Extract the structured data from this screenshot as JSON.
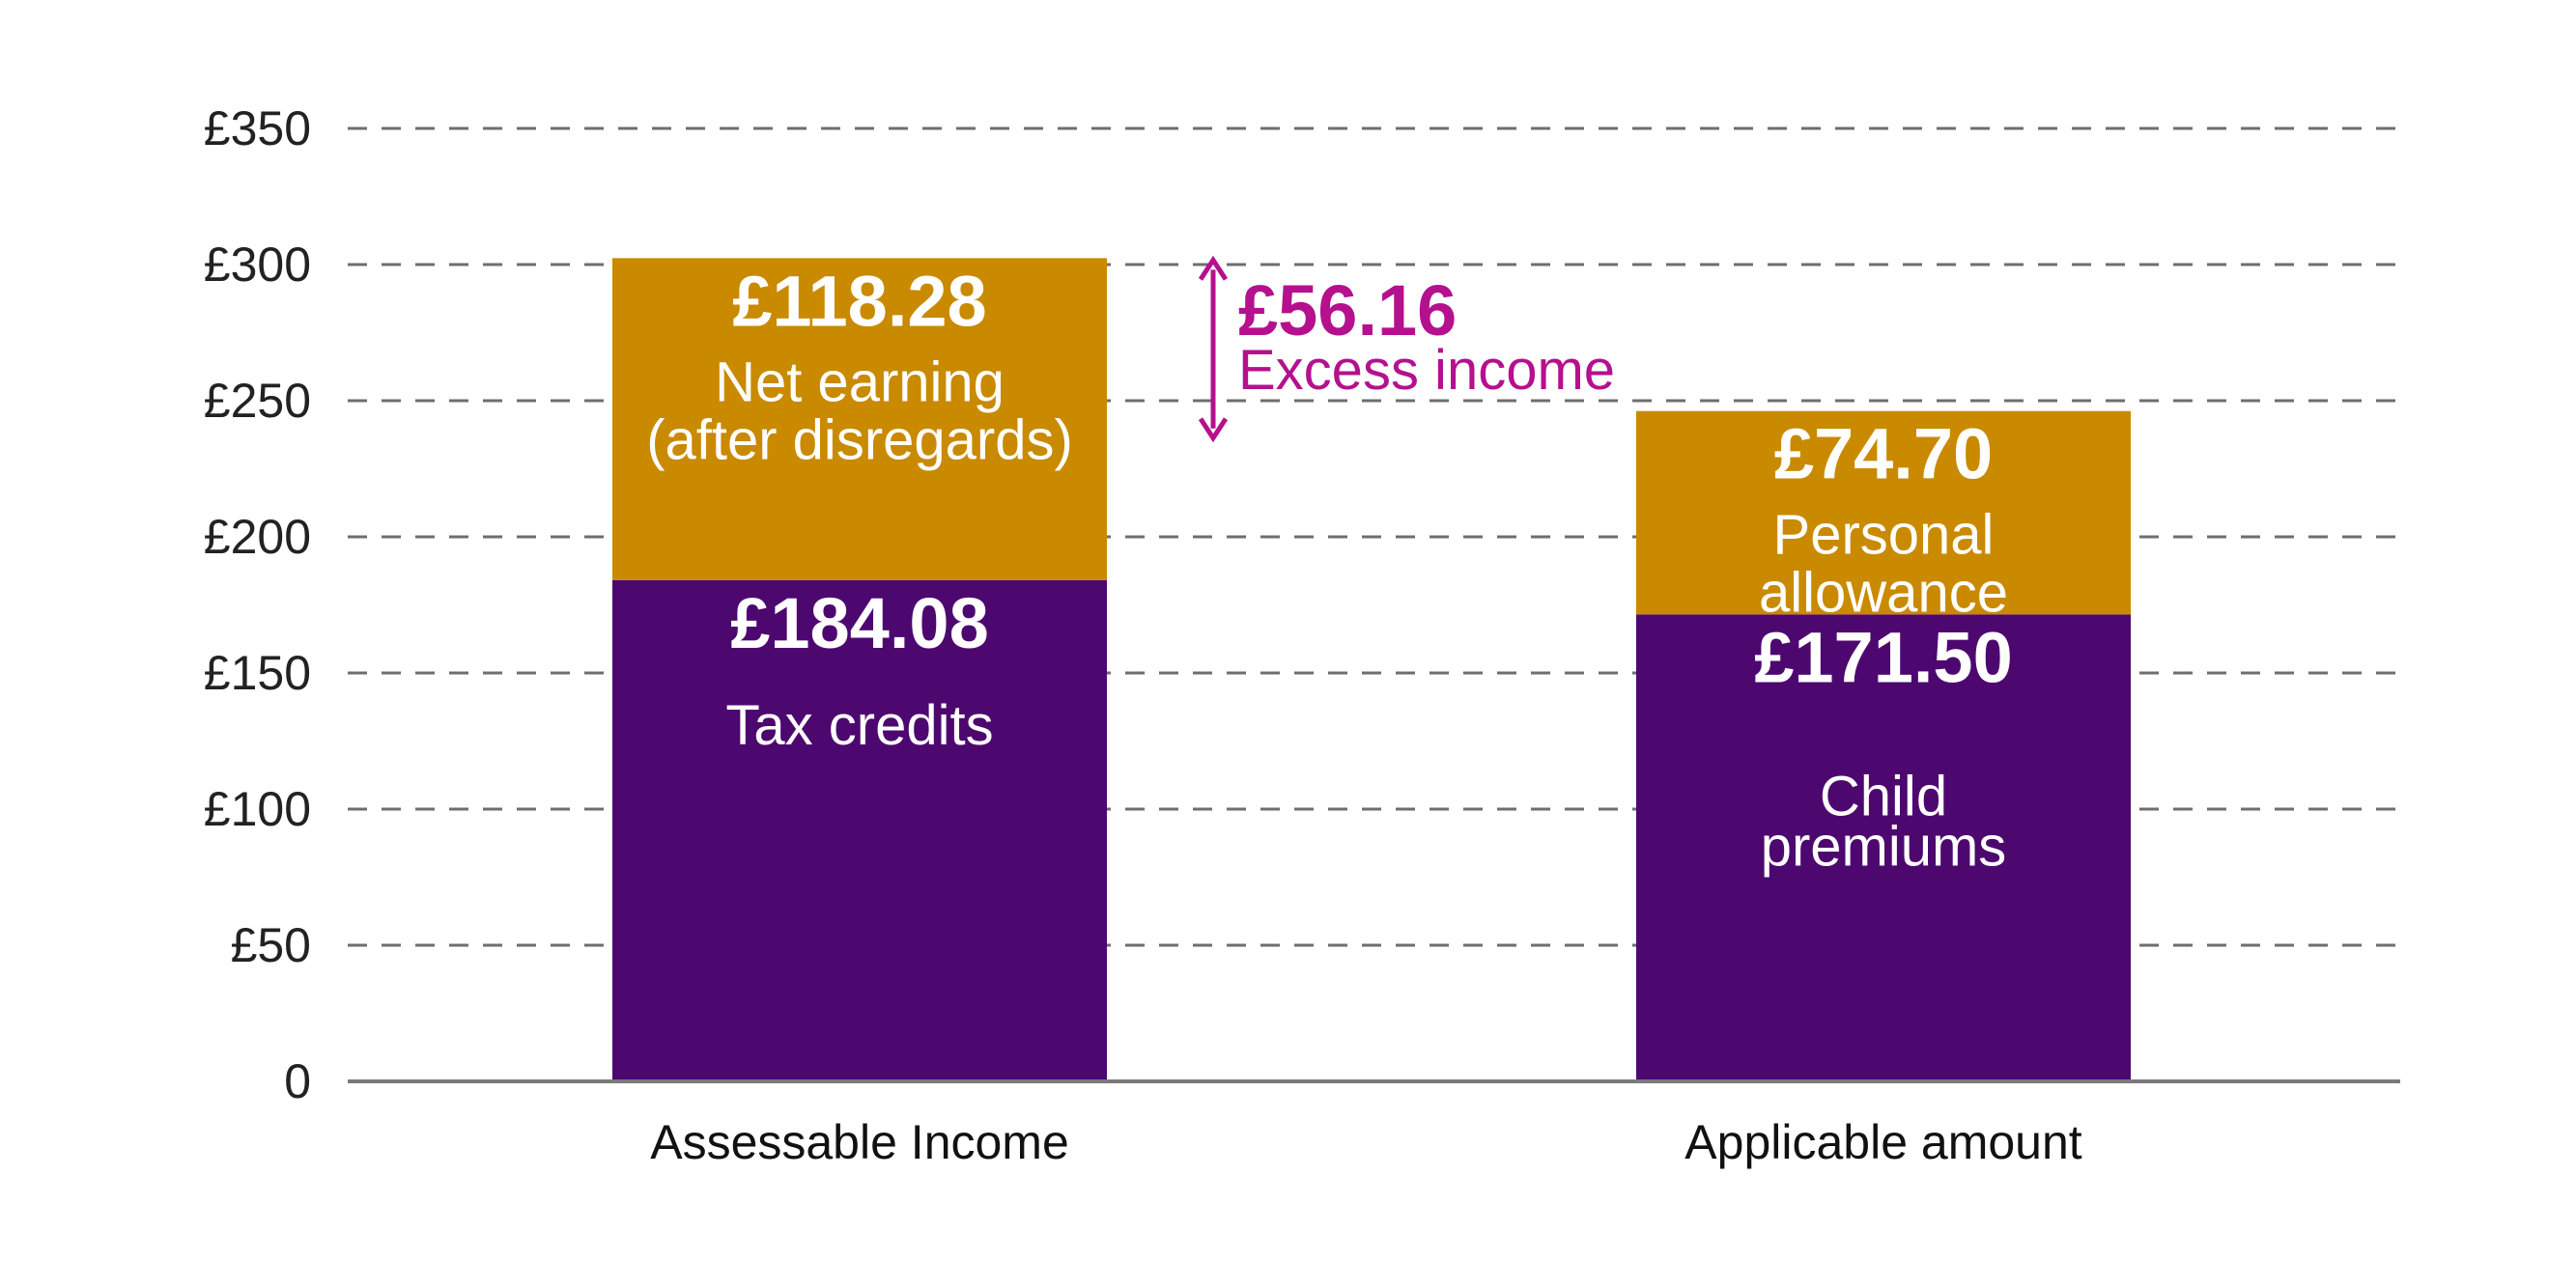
{
  "chart_data": {
    "type": "bar",
    "stacked": true,
    "title": "",
    "xlabel": "",
    "ylabel": "",
    "ylim": [
      0,
      350
    ],
    "y_ticks": [
      {
        "value": 0,
        "label": "0"
      },
      {
        "value": 50,
        "label": "£50"
      },
      {
        "value": 100,
        "label": "£100"
      },
      {
        "value": 150,
        "label": "£150"
      },
      {
        "value": 200,
        "label": "£200"
      },
      {
        "value": 250,
        "label": "£250"
      },
      {
        "value": 300,
        "label": "£300"
      },
      {
        "value": 350,
        "label": "£350"
      }
    ],
    "grid": true,
    "grid_style": "dashed",
    "categories": [
      "Assessable Income",
      "Applicable amount"
    ],
    "series": [
      {
        "color": "#4d0870",
        "values": [
          184.08,
          171.5
        ],
        "value_labels": [
          "£184.08",
          "£171.50"
        ],
        "segment_labels": [
          [
            "Tax credits"
          ],
          [
            "Child",
            "premiums"
          ]
        ]
      },
      {
        "color": "#c98a00",
        "values": [
          118.28,
          74.7
        ],
        "value_labels": [
          "£118.28",
          "£74.70"
        ],
        "segment_labels": [
          [
            "Net earning",
            "(after disregards)"
          ],
          [
            "Personal",
            "allowance"
          ]
        ]
      }
    ],
    "annotation": {
      "value": 56.16,
      "value_label": "£56.16",
      "label": "Excess income",
      "color": "#b5108e",
      "range": [
        246.2,
        302.36
      ]
    }
  }
}
